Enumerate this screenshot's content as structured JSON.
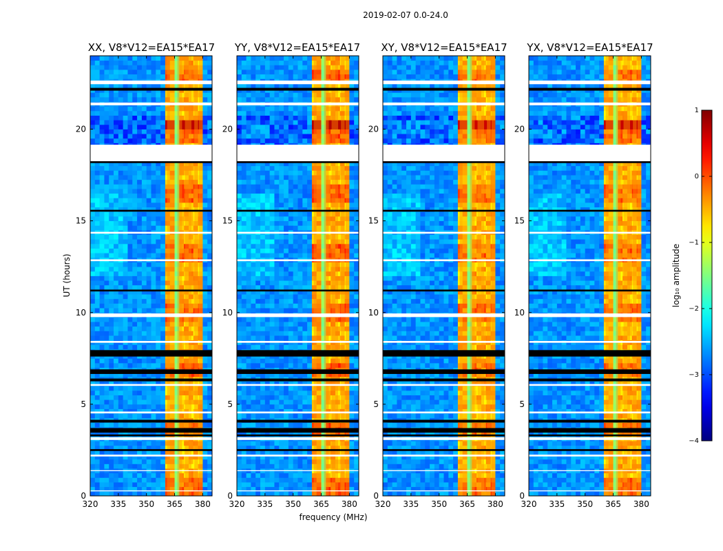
{
  "chart_data": {
    "type": "heatmap",
    "suptitle": "2019-02-07 0.0-24.0",
    "xlabel": "frequency (MHz)",
    "ylabel": "UT (hours)",
    "xlim": [
      320,
      385
    ],
    "ylim": [
      0,
      24
    ],
    "xticks": [
      320,
      335,
      350,
      365,
      380
    ],
    "yticks": [
      0,
      5,
      10,
      15,
      20
    ],
    "panels": [
      {
        "title": "XX, V8*V12=EA15*EA17",
        "signal_strength": 0.9
      },
      {
        "title": "YY, V8*V12=EA15*EA17",
        "signal_strength": 1.0
      },
      {
        "title": "XY, V8*V12=EA15*EA17",
        "signal_strength": 0.75
      },
      {
        "title": "YX, V8*V12=EA15*EA17",
        "signal_strength": 0.8
      }
    ],
    "signal_band_mhz": [
      361,
      380
    ],
    "signal_sub_bands_mhz": [
      [
        361,
        365
      ],
      [
        366.5,
        369
      ],
      [
        370.5,
        374
      ],
      [
        375.5,
        377.5
      ],
      [
        378,
        380
      ]
    ],
    "flagged_white_ut": [
      [
        22.45,
        22.65
      ],
      [
        21.3,
        21.45
      ],
      [
        18.2,
        19.15
      ],
      [
        9.75,
        9.95
      ],
      [
        8.35,
        8.45
      ],
      [
        6.0,
        6.1
      ],
      [
        4.5,
        4.6
      ],
      [
        3.05,
        3.2
      ],
      [
        2.15,
        2.25
      ],
      [
        1.35,
        1.4
      ],
      [
        0.25,
        0.3
      ],
      [
        12.8,
        12.9
      ],
      [
        14.3,
        14.4
      ]
    ],
    "flagged_black_ut": [
      [
        22.1,
        22.25
      ],
      [
        18.15,
        18.25
      ],
      [
        7.6,
        7.95
      ],
      [
        6.65,
        6.9
      ],
      [
        6.25,
        6.4
      ],
      [
        4.0,
        4.15
      ],
      [
        3.45,
        3.7
      ],
      [
        3.25,
        3.35
      ],
      [
        2.45,
        2.55
      ],
      [
        11.15,
        11.25
      ],
      [
        15.5,
        15.6
      ]
    ],
    "colorbar": {
      "label": "log₁₀ amplitude",
      "range": [
        -4,
        1
      ],
      "ticks": [
        1,
        0,
        -1,
        -2,
        -3,
        -4
      ],
      "tick_labels": [
        "1",
        "0",
        "−1",
        "−2",
        "−3",
        "−4"
      ],
      "colormap": "jet"
    }
  }
}
